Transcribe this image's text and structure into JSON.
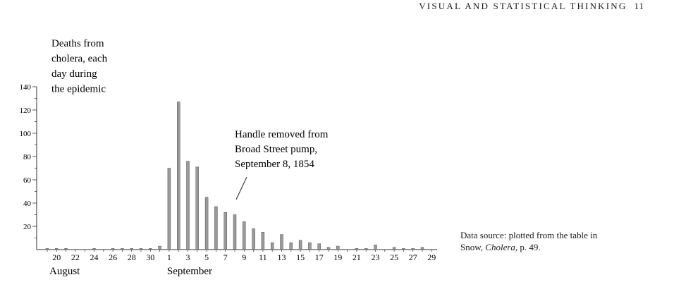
{
  "page": {
    "running_head": "VISUAL AND STATISTICAL THINKING",
    "page_number": "11"
  },
  "chart_data": {
    "type": "bar",
    "title_lines": [
      "Deaths from",
      "cholera, each",
      "day during",
      "the epidemic"
    ],
    "ylabel": "",
    "xlabel": "",
    "ylim": [
      0,
      140
    ],
    "ytick_labels": [
      "20",
      "40",
      "60",
      "80",
      "100",
      "120",
      "140"
    ],
    "x_days": [
      19,
      20,
      21,
      22,
      23,
      24,
      25,
      26,
      27,
      28,
      29,
      30,
      31,
      1,
      2,
      3,
      4,
      5,
      6,
      7,
      8,
      9,
      10,
      11,
      12,
      13,
      14,
      15,
      16,
      17,
      18,
      19,
      20,
      21,
      22,
      23,
      24,
      25,
      26,
      27,
      28,
      29
    ],
    "values": [
      1,
      1,
      1,
      0,
      0,
      1,
      0,
      1,
      1,
      1,
      1,
      1,
      3,
      70,
      127,
      76,
      71,
      45,
      37,
      32,
      30,
      24,
      18,
      15,
      6,
      13,
      6,
      8,
      6,
      5,
      2,
      3,
      0,
      1,
      1,
      4,
      0,
      2,
      1,
      1,
      2,
      0
    ],
    "xtick_labels": [
      "20",
      "22",
      "24",
      "26",
      "28",
      "30",
      "1",
      "3",
      "5",
      "7",
      "9",
      "11",
      "13",
      "15",
      "17",
      "19",
      "21",
      "23",
      "25",
      "27",
      "29"
    ],
    "month_labels": [
      "August",
      "September"
    ],
    "annotation": [
      "Handle removed from",
      "Broad Street pump,",
      "September 8, 1854"
    ],
    "source_lines": [
      "Data source: plotted from the table in",
      "Snow, ",
      "Cholera",
      ", p. 49."
    ],
    "grid": false
  }
}
